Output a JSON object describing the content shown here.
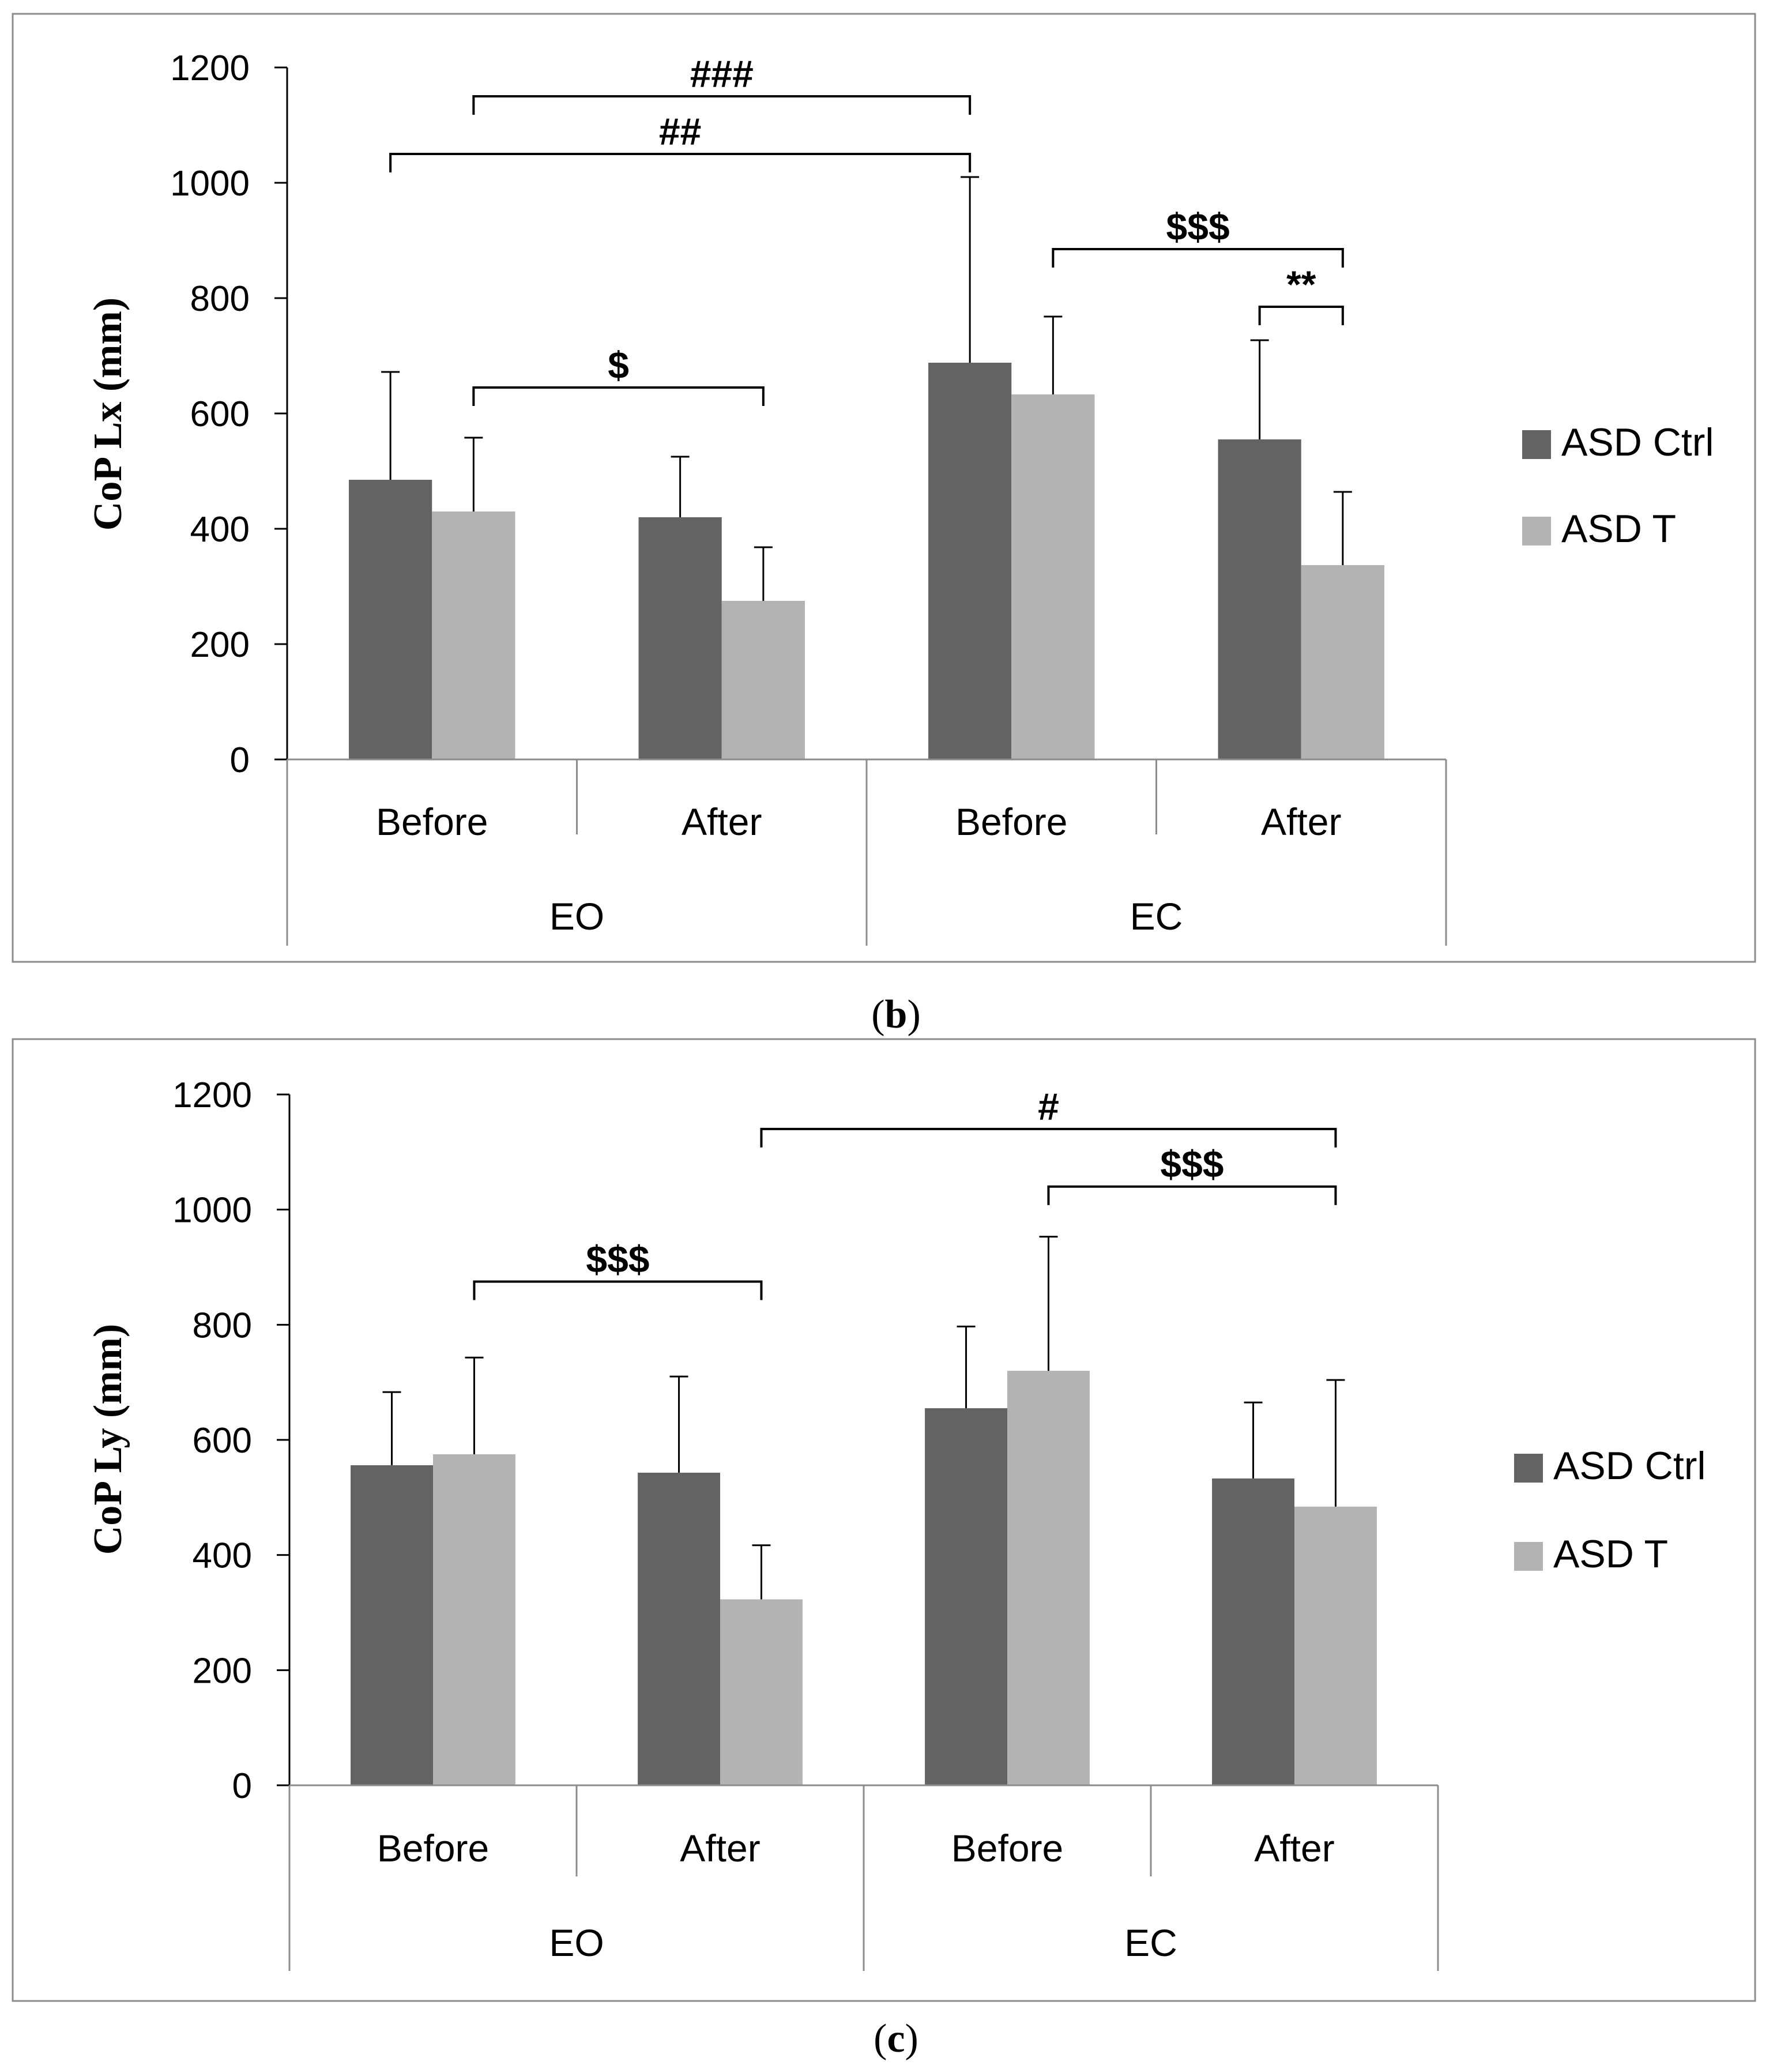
{
  "chart_data": [
    {
      "type": "bar",
      "panel_label": "b",
      "ylabel": "CoP Lx (mm)",
      "ylim": [
        0,
        1200
      ],
      "yticks": [
        "0",
        "200",
        "400",
        "600",
        "800",
        "1000",
        "1200"
      ],
      "categories": [
        "Before",
        "After",
        "Before",
        "After"
      ],
      "groups": [
        {
          "label": "EO",
          "span": [
            0,
            1
          ]
        },
        {
          "label": "EC",
          "span": [
            2,
            3
          ]
        }
      ],
      "series": [
        {
          "name": "ASD Ctrl",
          "color": "#636363",
          "values": [
            485,
            420,
            688,
            555
          ],
          "errors": [
            187,
            105,
            322,
            172
          ]
        },
        {
          "name": "ASD T",
          "color": "#b3b3b3",
          "values": [
            430,
            275,
            633,
            337
          ],
          "errors": [
            128,
            93,
            135,
            127
          ]
        }
      ],
      "annotations": [
        {
          "label": "###",
          "from": [
            0,
            1
          ],
          "to": [
            2,
            0
          ],
          "level": 1150
        },
        {
          "label": "##",
          "from": [
            0,
            0
          ],
          "to": [
            2,
            0
          ],
          "level": 1050
        },
        {
          "label": "$$$",
          "from": [
            2,
            1
          ],
          "to": [
            3,
            1
          ],
          "level": 885
        },
        {
          "label": "**",
          "from": [
            3,
            0
          ],
          "to": [
            3,
            1
          ],
          "level": 785
        },
        {
          "label": "$",
          "from": [
            0,
            1
          ],
          "to": [
            1,
            1
          ],
          "level": 645
        }
      ]
    },
    {
      "type": "bar",
      "panel_label": "c",
      "ylabel": "CoP Ly (mm)",
      "ylim": [
        0,
        1200
      ],
      "yticks": [
        "0",
        "200",
        "400",
        "600",
        "800",
        "1000",
        "1200"
      ],
      "categories": [
        "Before",
        "After",
        "Before",
        "After"
      ],
      "groups": [
        {
          "label": "EO",
          "span": [
            0,
            1
          ]
        },
        {
          "label": "EC",
          "span": [
            2,
            3
          ]
        }
      ],
      "series": [
        {
          "name": "ASD Ctrl",
          "color": "#636363",
          "values": [
            556,
            543,
            655,
            533
          ],
          "errors": [
            127,
            167,
            142,
            132
          ]
        },
        {
          "name": "ASD T",
          "color": "#b3b3b3",
          "values": [
            575,
            323,
            720,
            484
          ],
          "errors": [
            168,
            94,
            233,
            220
          ]
        }
      ],
      "annotations": [
        {
          "label": "#",
          "from": [
            1,
            1
          ],
          "to": [
            3,
            1
          ],
          "level": 1140
        },
        {
          "label": "$$$",
          "from": [
            2,
            1
          ],
          "to": [
            3,
            1
          ],
          "level": 1040
        },
        {
          "label": "$$$",
          "from": [
            0,
            1
          ],
          "to": [
            1,
            1
          ],
          "level": 875
        }
      ]
    }
  ]
}
